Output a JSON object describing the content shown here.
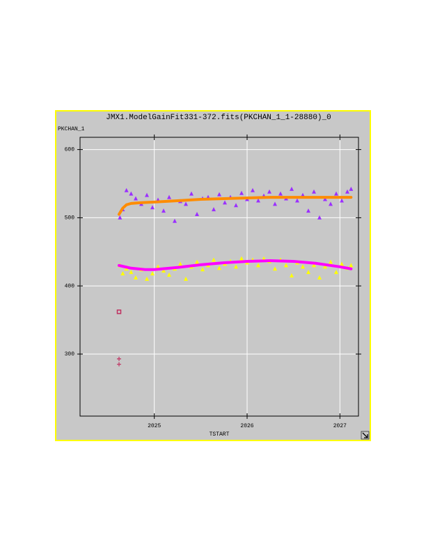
{
  "chart_data": {
    "type": "scatter",
    "title": "JMX1.ModelGainFit331-372.fits(PKCHAN_1_1-28880)_0",
    "y_label": "PKCHAN_1",
    "x_label": "TSTART",
    "xlim": [
      2024.2,
      2027.2
    ],
    "ylim": [
      209,
      618
    ],
    "xticks": [
      2025,
      2026,
      2027
    ],
    "yticks": [
      300,
      400,
      500,
      600
    ],
    "grid": true,
    "series": [
      {
        "color": "#9b30ff",
        "marker": "triangle",
        "x": [
          2024.63,
          2024.66,
          2024.7,
          2024.75,
          2024.8,
          2024.86,
          2024.92,
          2024.98,
          2025.04,
          2025.1,
          2025.16,
          2025.22,
          2025.28,
          2025.34,
          2025.4,
          2025.46,
          2025.52,
          2025.58,
          2025.64,
          2025.7,
          2025.76,
          2025.82,
          2025.88,
          2025.94,
          2026.0,
          2026.06,
          2026.12,
          2026.18,
          2026.24,
          2026.3,
          2026.36,
          2026.42,
          2026.48,
          2026.54,
          2026.6,
          2026.66,
          2026.72,
          2026.78,
          2026.84,
          2026.9,
          2026.96,
          2027.02,
          2027.08,
          2027.12
        ],
        "values": [
          500,
          512,
          540,
          535,
          528,
          520,
          533,
          515,
          526,
          510,
          530,
          495,
          524,
          520,
          535,
          505,
          528,
          530,
          512,
          534,
          522,
          530,
          518,
          536,
          527,
          540,
          525,
          532,
          538,
          520,
          535,
          528,
          542,
          525,
          533,
          510,
          538,
          500,
          527,
          520,
          535,
          525,
          538,
          542
        ]
      },
      {
        "color": "#ffff00",
        "marker": "triangle",
        "x": [
          2024.63,
          2024.66,
          2024.7,
          2024.75,
          2024.8,
          2024.86,
          2024.92,
          2024.98,
          2025.04,
          2025.1,
          2025.16,
          2025.22,
          2025.28,
          2025.34,
          2025.4,
          2025.46,
          2025.52,
          2025.58,
          2025.64,
          2025.7,
          2025.76,
          2025.82,
          2025.88,
          2025.94,
          2026.0,
          2026.06,
          2026.12,
          2026.18,
          2026.24,
          2026.3,
          2026.36,
          2026.42,
          2026.48,
          2026.54,
          2026.6,
          2026.66,
          2026.72,
          2026.78,
          2026.84,
          2026.9,
          2026.96,
          2027.02,
          2027.08,
          2027.12
        ],
        "values": [
          430,
          418,
          425,
          420,
          412,
          424,
          410,
          418,
          428,
          422,
          416,
          425,
          432,
          410,
          428,
          435,
          424,
          430,
          438,
          426,
          432,
          436,
          428,
          440,
          434,
          438,
          430,
          440,
          436,
          425,
          438,
          430,
          415,
          434,
          428,
          420,
          430,
          412,
          428,
          435,
          420,
          432,
          426,
          430
        ]
      },
      {
        "color": "#ff8c00",
        "marker": "line",
        "x": [
          2024.62,
          2024.66,
          2024.7,
          2024.75,
          2024.85,
          2025.0,
          2025.25,
          2025.5,
          2025.75,
          2026,
          2026.25,
          2026.5,
          2026.75,
          2027,
          2027.12
        ],
        "values": [
          505,
          514,
          519,
          521,
          522,
          523,
          525,
          527,
          528,
          529,
          530,
          530,
          530,
          530,
          530
        ]
      },
      {
        "color": "#ff00ff",
        "marker": "line",
        "x": [
          2024.62,
          2024.75,
          2024.9,
          2025.0,
          2025.25,
          2025.5,
          2025.75,
          2026,
          2026.25,
          2026.5,
          2026.75,
          2027,
          2027.12
        ],
        "values": [
          430,
          426,
          424,
          424,
          427,
          431,
          434,
          436,
          437,
          436,
          433,
          428,
          425
        ]
      },
      {
        "color": "#c03060",
        "marker": "square",
        "x": [
          2024.62
        ],
        "values": [
          362
        ]
      },
      {
        "color": "#c03060",
        "marker": "plus",
        "x": [
          2024.62,
          2024.62
        ],
        "values": [
          293,
          285
        ]
      }
    ]
  }
}
